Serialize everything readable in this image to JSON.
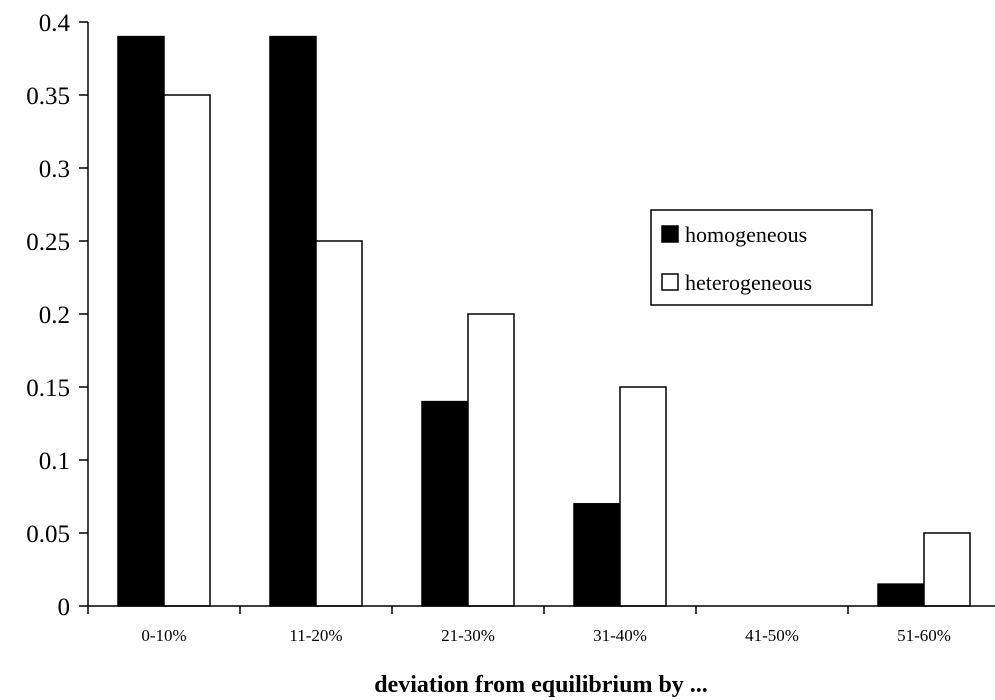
{
  "chart_data": {
    "type": "bar",
    "categories": [
      "0-10%",
      "11-20%",
      "21-30%",
      "31-40%",
      "41-50%",
      "51-60%"
    ],
    "series": [
      {
        "name": "homogeneous",
        "values": [
          0.39,
          0.39,
          0.14,
          0.07,
          0,
          0.015
        ],
        "color": "#000000"
      },
      {
        "name": "heterogeneous",
        "values": [
          0.35,
          0.25,
          0.2,
          0.15,
          0,
          0.05
        ],
        "color": "#ffffff"
      }
    ],
    "title": "",
    "xlabel": "deviation from equilibrium by ...",
    "ylabel": "",
    "ylim": [
      0,
      0.4
    ],
    "yticks": [
      "0",
      "0.05",
      "0.1",
      "0.15",
      "0.2",
      "0.25",
      "0.3",
      "0.35",
      "0.4"
    ],
    "grid": false,
    "legend_position": "right"
  }
}
